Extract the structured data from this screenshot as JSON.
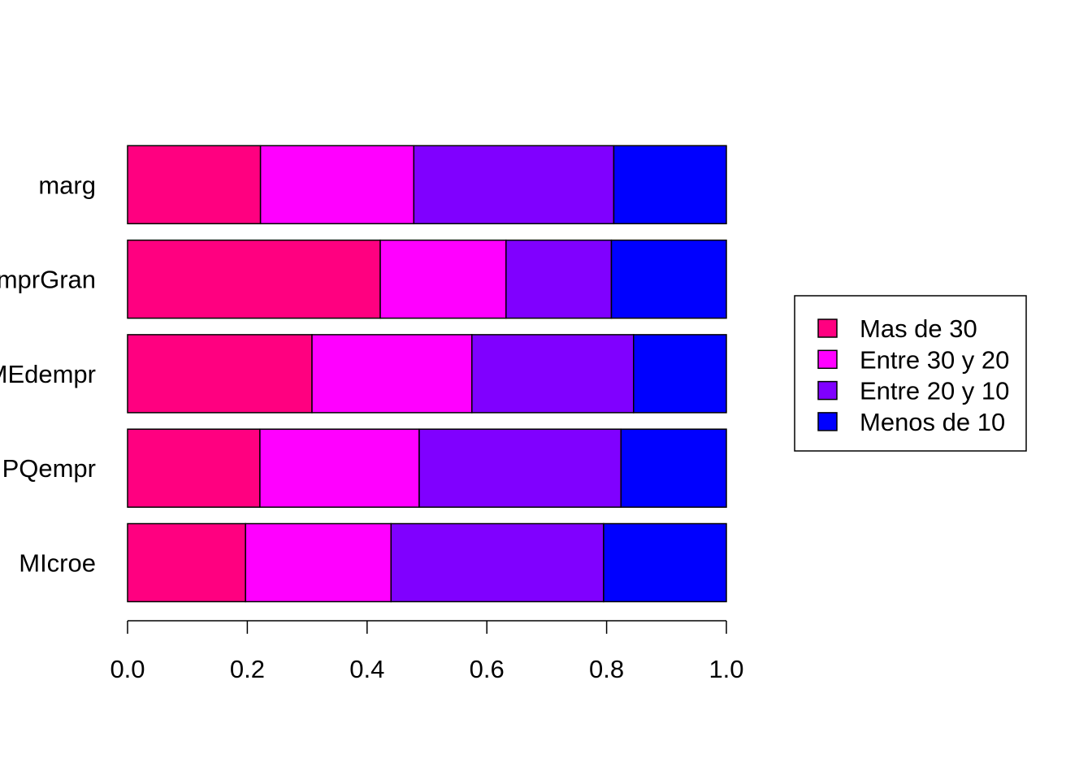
{
  "chart_data": {
    "type": "bar",
    "orientation": "horizontal",
    "stacked": true,
    "categories": [
      "MIcroe",
      "PQempr",
      "MEdempr",
      "EmprGran",
      "marg"
    ],
    "series": [
      {
        "name": "Mas de 30",
        "color": "#FF0080",
        "values": [
          0.197,
          0.221,
          0.308,
          0.422,
          0.222
        ]
      },
      {
        "name": "Entre 30 y 20",
        "color": "#FF00FF",
        "values": [
          0.243,
          0.266,
          0.267,
          0.21,
          0.256
        ]
      },
      {
        "name": "Entre 20 y 10",
        "color": "#8000FF",
        "values": [
          0.355,
          0.337,
          0.27,
          0.176,
          0.334
        ]
      },
      {
        "name": "Menos de 10",
        "color": "#0000FF",
        "values": [
          0.205,
          0.176,
          0.155,
          0.192,
          0.188
        ]
      }
    ],
    "xlim": [
      0,
      1
    ],
    "x_ticks": [
      0,
      0.2,
      0.4,
      0.6,
      0.8,
      1.0
    ],
    "x_tick_labels": [
      "0.0",
      "0.2",
      "0.4",
      "0.6",
      "0.8",
      "1.0"
    ],
    "title": "",
    "xlabel": "",
    "ylabel": "",
    "grid": false,
    "legend": {
      "position": "right",
      "entries": [
        "Mas de 30",
        "Entre 30 y 20",
        "Entre 20 y 10",
        "Menos de 10"
      ]
    }
  }
}
